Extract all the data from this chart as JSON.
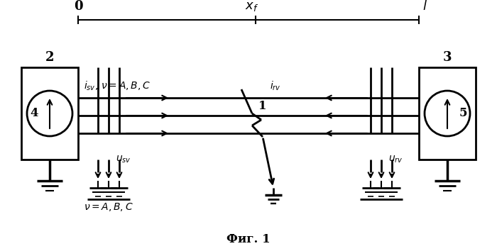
{
  "title": "Фиг. 1",
  "background": "#ffffff",
  "line_color": "#000000",
  "fig_width": 7.0,
  "fig_height": 3.54,
  "dpi": 100,
  "label_0": "0",
  "label_xf": "$x_f$",
  "label_l": "$l$",
  "label_2": "2",
  "label_3": "3",
  "label_4": "4",
  "label_5": "5",
  "label_1": "1",
  "label_isv": "$i_{sv},\\, \\nu = A, B, C$",
  "label_irv": "$i_{rv}$",
  "label_usv": "$u_{sv}$",
  "label_urv": "$u_{rv}$",
  "label_nu": "$\\nu = A, B, C$"
}
